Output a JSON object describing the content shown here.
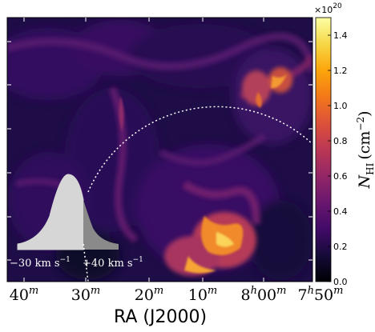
{
  "chart_data": {
    "type": "heatmap",
    "xlabel": "RA (J2000)",
    "x_ticks": [
      {
        "main": "40",
        "sup": "m"
      },
      {
        "main": "30",
        "sup": "m"
      },
      {
        "main": "20",
        "sup": "m"
      },
      {
        "main": "10",
        "sup": "m"
      },
      {
        "main": "8",
        "sup": "h",
        "tail": "00",
        "tail_sup": "m"
      },
      {
        "main": "7",
        "sup": "h",
        "tail": "50",
        "tail_sup": "m"
      }
    ],
    "colorbar": {
      "label_main": "N",
      "label_sub": "HI",
      "label_unit": "(cm",
      "label_unit_sup": "−2",
      "label_close": ")",
      "multiplier": "×10",
      "multiplier_sup": "20",
      "ticks": [
        "0.0",
        "0.2",
        "0.4",
        "0.6",
        "0.8",
        "1.0",
        "1.2",
        "1.4"
      ],
      "values": [
        0.0,
        0.2,
        0.4,
        0.6,
        0.8,
        1.0,
        1.2,
        1.4
      ],
      "range": [
        0.0,
        1.5
      ],
      "colormap": "inferno"
    },
    "inset": {
      "left_label": "−30 km s",
      "left_sup": "−1",
      "right_label": "+40 km s",
      "right_sup": "−1"
    }
  }
}
